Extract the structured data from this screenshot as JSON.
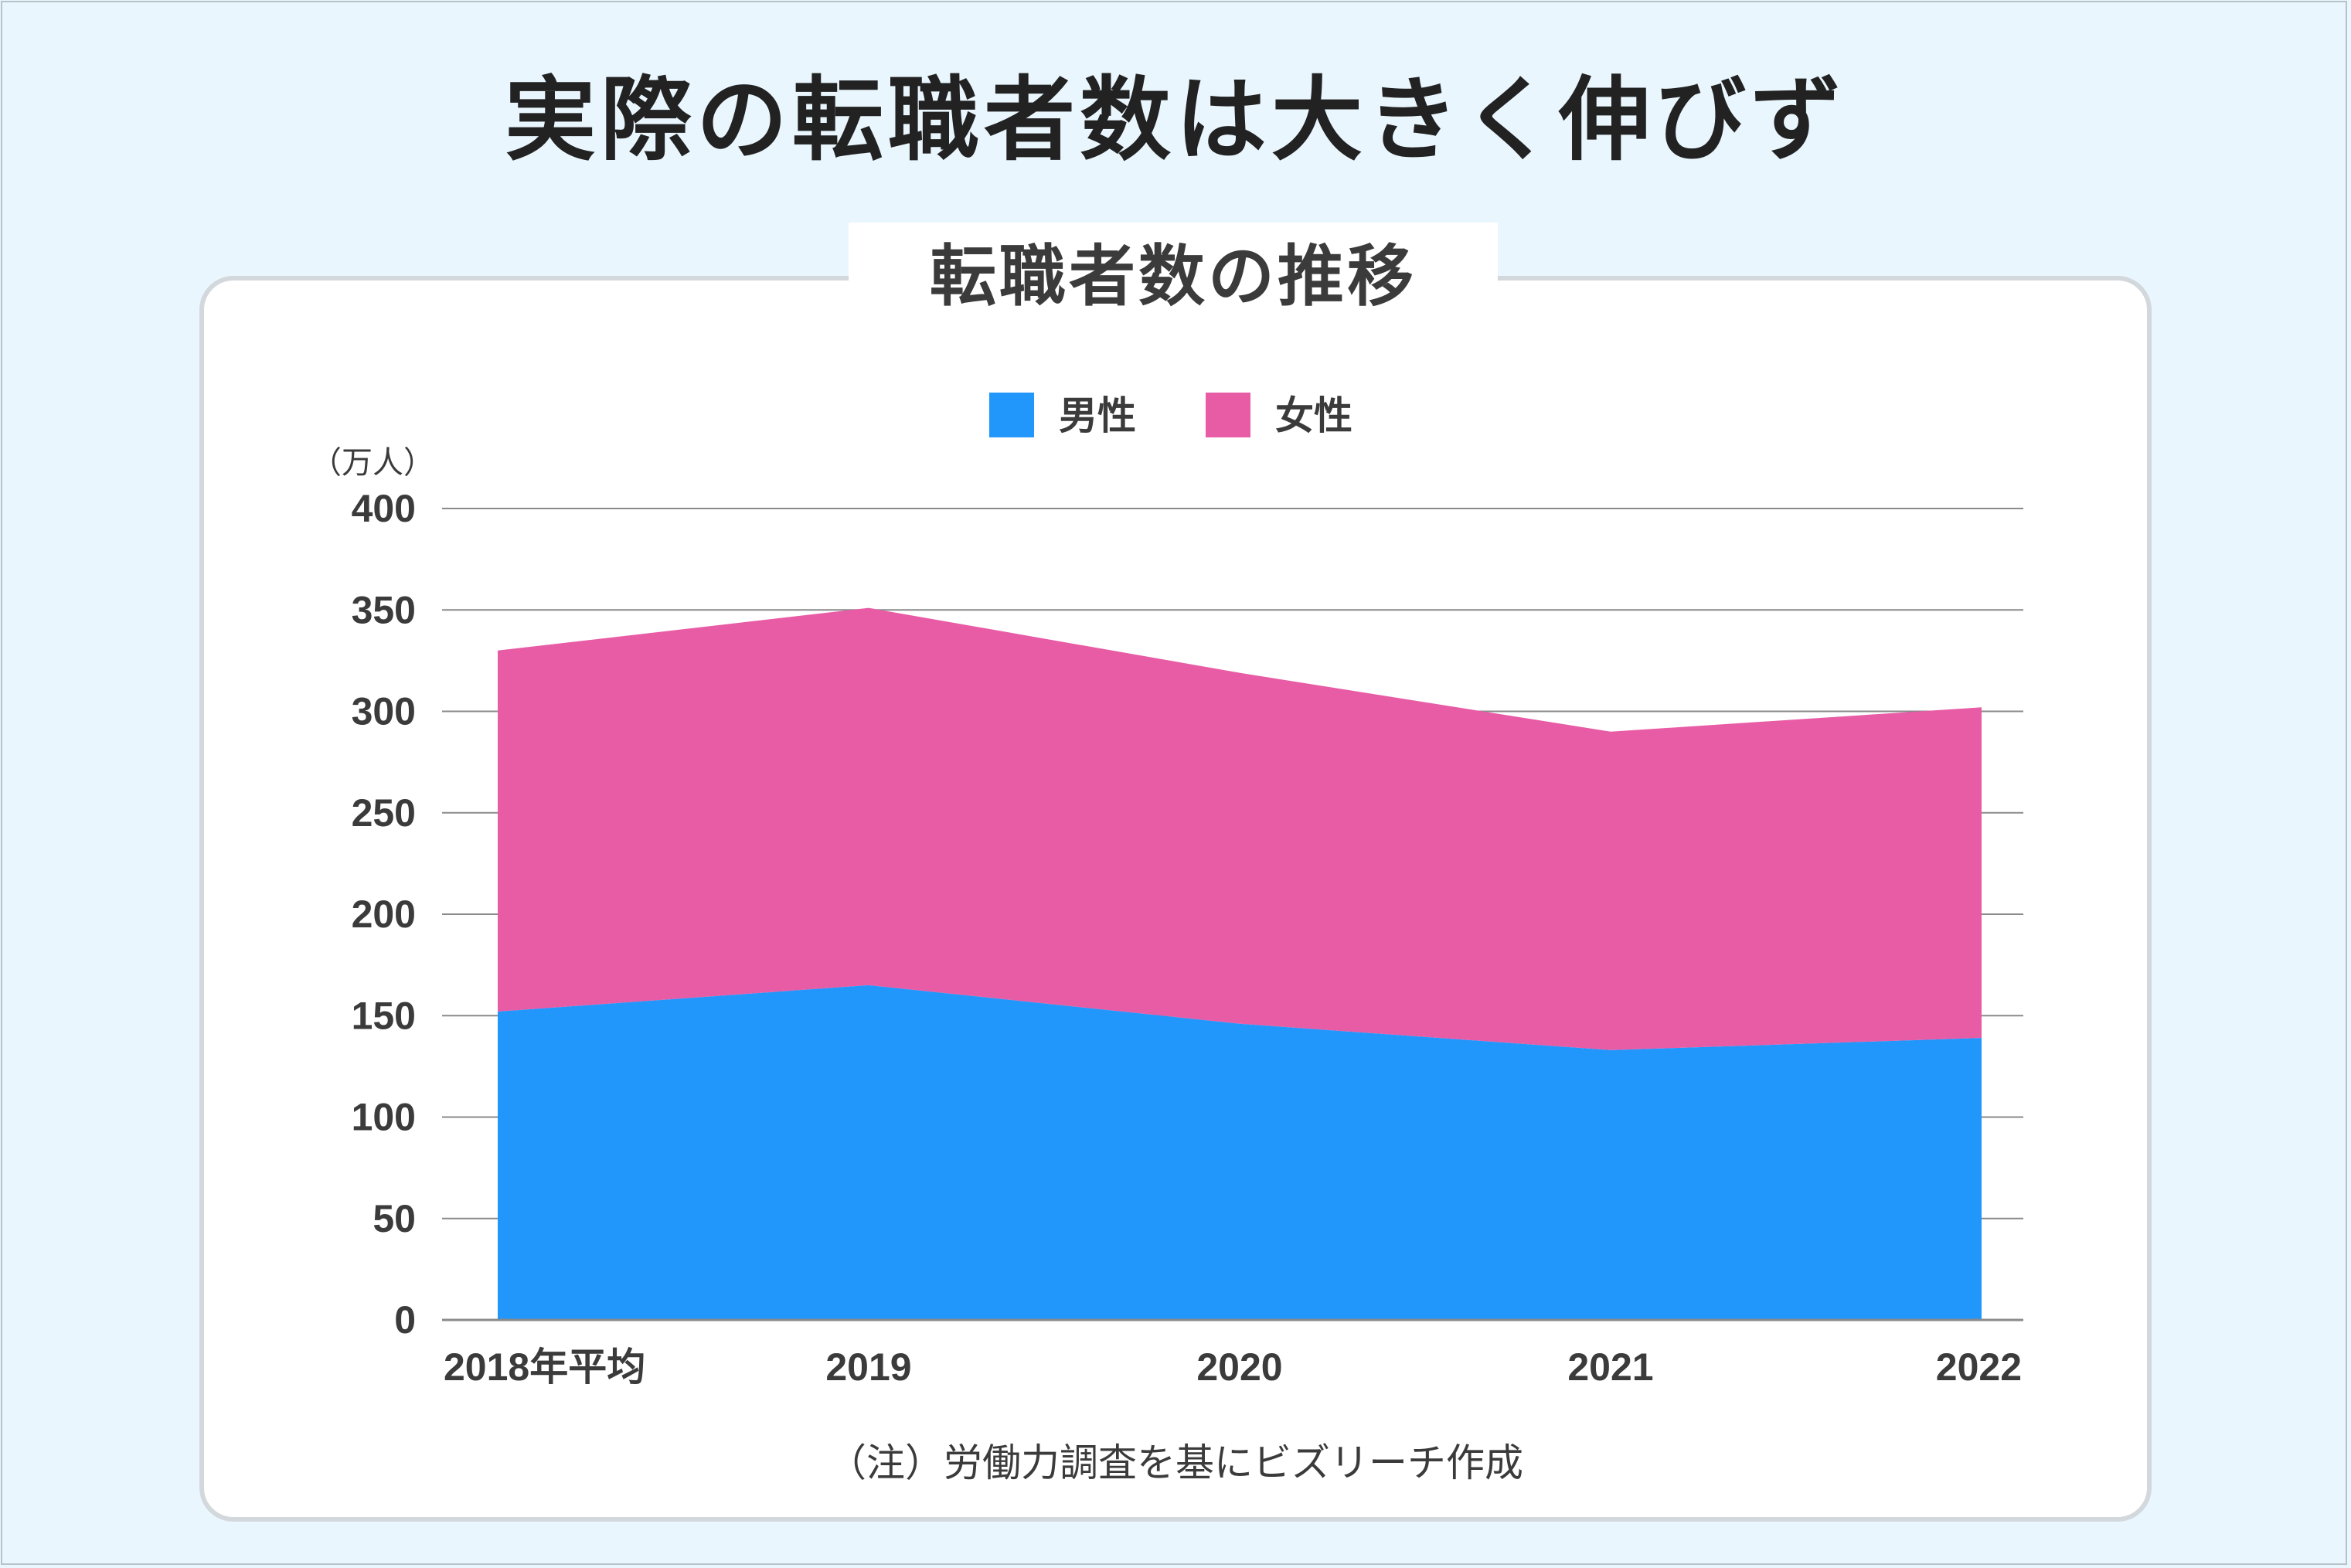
{
  "page": {
    "title": "実際の転職者数は大きく伸びず",
    "note": "（注）労働力調査を基にビズリーチ作成"
  },
  "colors": {
    "background": "#e9f6fd",
    "male": "#2196fb",
    "female": "#e85ca6",
    "grid": "#8a8a8a",
    "text": "#3b3b3b"
  },
  "chart_data": {
    "type": "area",
    "stacked": true,
    "title": "転職者数の推移",
    "unit_label": "（万人）",
    "categories": [
      "2018年平均",
      "2019",
      "2020",
      "2021",
      "2022"
    ],
    "series": [
      {
        "name": "男性",
        "color": "#2196fb",
        "values": [
          152,
          165,
          146,
          133,
          139
        ]
      },
      {
        "name": "女性",
        "color": "#e85ca6",
        "values": [
          178,
          186,
          173,
          157,
          163
        ]
      }
    ],
    "ylim": [
      0,
      400
    ],
    "yticks": [
      "0",
      "50",
      "100",
      "150",
      "200",
      "250",
      "300",
      "350",
      "400"
    ],
    "grid": true,
    "legend_position": "top"
  }
}
